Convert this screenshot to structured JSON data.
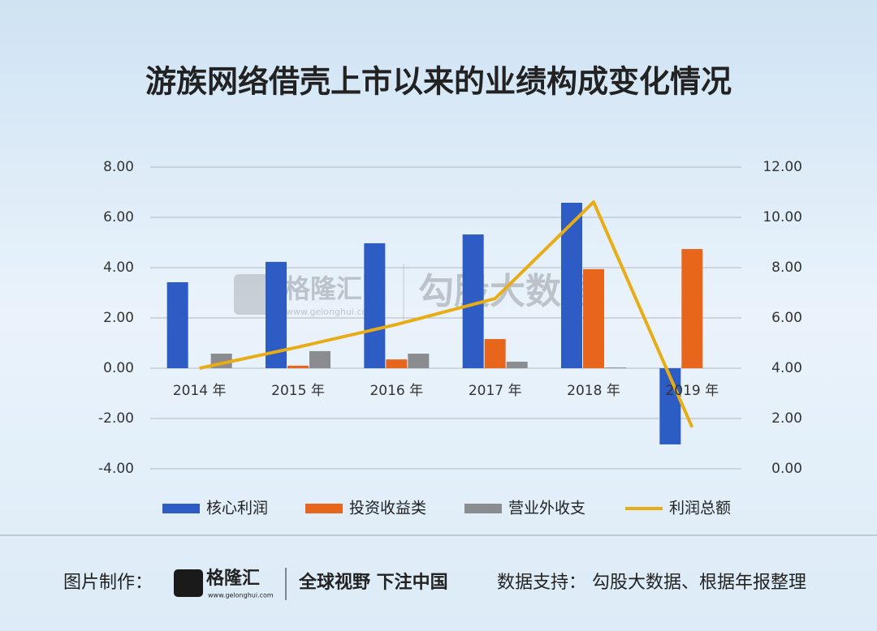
{
  "chart_data": {
    "type": "bar-line",
    "title": "游族网络借壳上市以来的业绩构成变化情况",
    "categories": [
      "2014 年",
      "2015 年",
      "2016 年",
      "2017 年",
      "2018 年",
      "2019 年"
    ],
    "series": [
      {
        "name": "核心利润",
        "type": "bar",
        "color": "#2d5cc4",
        "values": [
          3.42,
          4.23,
          4.97,
          5.32,
          6.58,
          -3.03
        ]
      },
      {
        "name": "投资收益类",
        "type": "bar",
        "color": "#e8661c",
        "values": [
          0,
          0.1,
          0.35,
          1.16,
          3.94,
          4.74
        ]
      },
      {
        "name": "营业外收支",
        "type": "bar",
        "color": "#8a8c90",
        "values": [
          0.58,
          0.68,
          0.58,
          0.26,
          0.03,
          0
        ]
      },
      {
        "name": "利润总额",
        "type": "line",
        "axis": "y2",
        "color": "#e8ac14",
        "values": [
          4.0,
          4.84,
          5.74,
          6.77,
          10.61,
          1.65
        ]
      }
    ],
    "ylim": [
      -4,
      8
    ],
    "yticks": [
      {
        "value": -4,
        "label": "-4.00"
      },
      {
        "value": -2,
        "label": "-2.00"
      },
      {
        "value": 0,
        "label": "0.00"
      },
      {
        "value": 2,
        "label": "2.00"
      },
      {
        "value": 4,
        "label": "4.00"
      },
      {
        "value": 6,
        "label": "6.00"
      },
      {
        "value": 8,
        "label": "8.00"
      }
    ],
    "y2lim": [
      0,
      12
    ],
    "y2ticks": [
      {
        "value": 0,
        "label": "0.00"
      },
      {
        "value": 2,
        "label": "2.00"
      },
      {
        "value": 4,
        "label": "4.00"
      },
      {
        "value": 6,
        "label": "6.00"
      },
      {
        "value": 8,
        "label": "8.00"
      },
      {
        "value": 10,
        "label": "10.00"
      },
      {
        "value": 12,
        "label": "12.00"
      }
    ],
    "grid": true,
    "legend": "bottom"
  },
  "watermark": {
    "logo": "格隆汇",
    "url": "www.gelonghui.com",
    "text": "勾股大数据"
  },
  "footer": {
    "made_by": "图片制作：",
    "logo": "格隆汇",
    "url": "www.gelonghui.com",
    "slogan": "全球视野 下注中国",
    "source": "数据支持： 勾股大数据、根据年报整理"
  }
}
